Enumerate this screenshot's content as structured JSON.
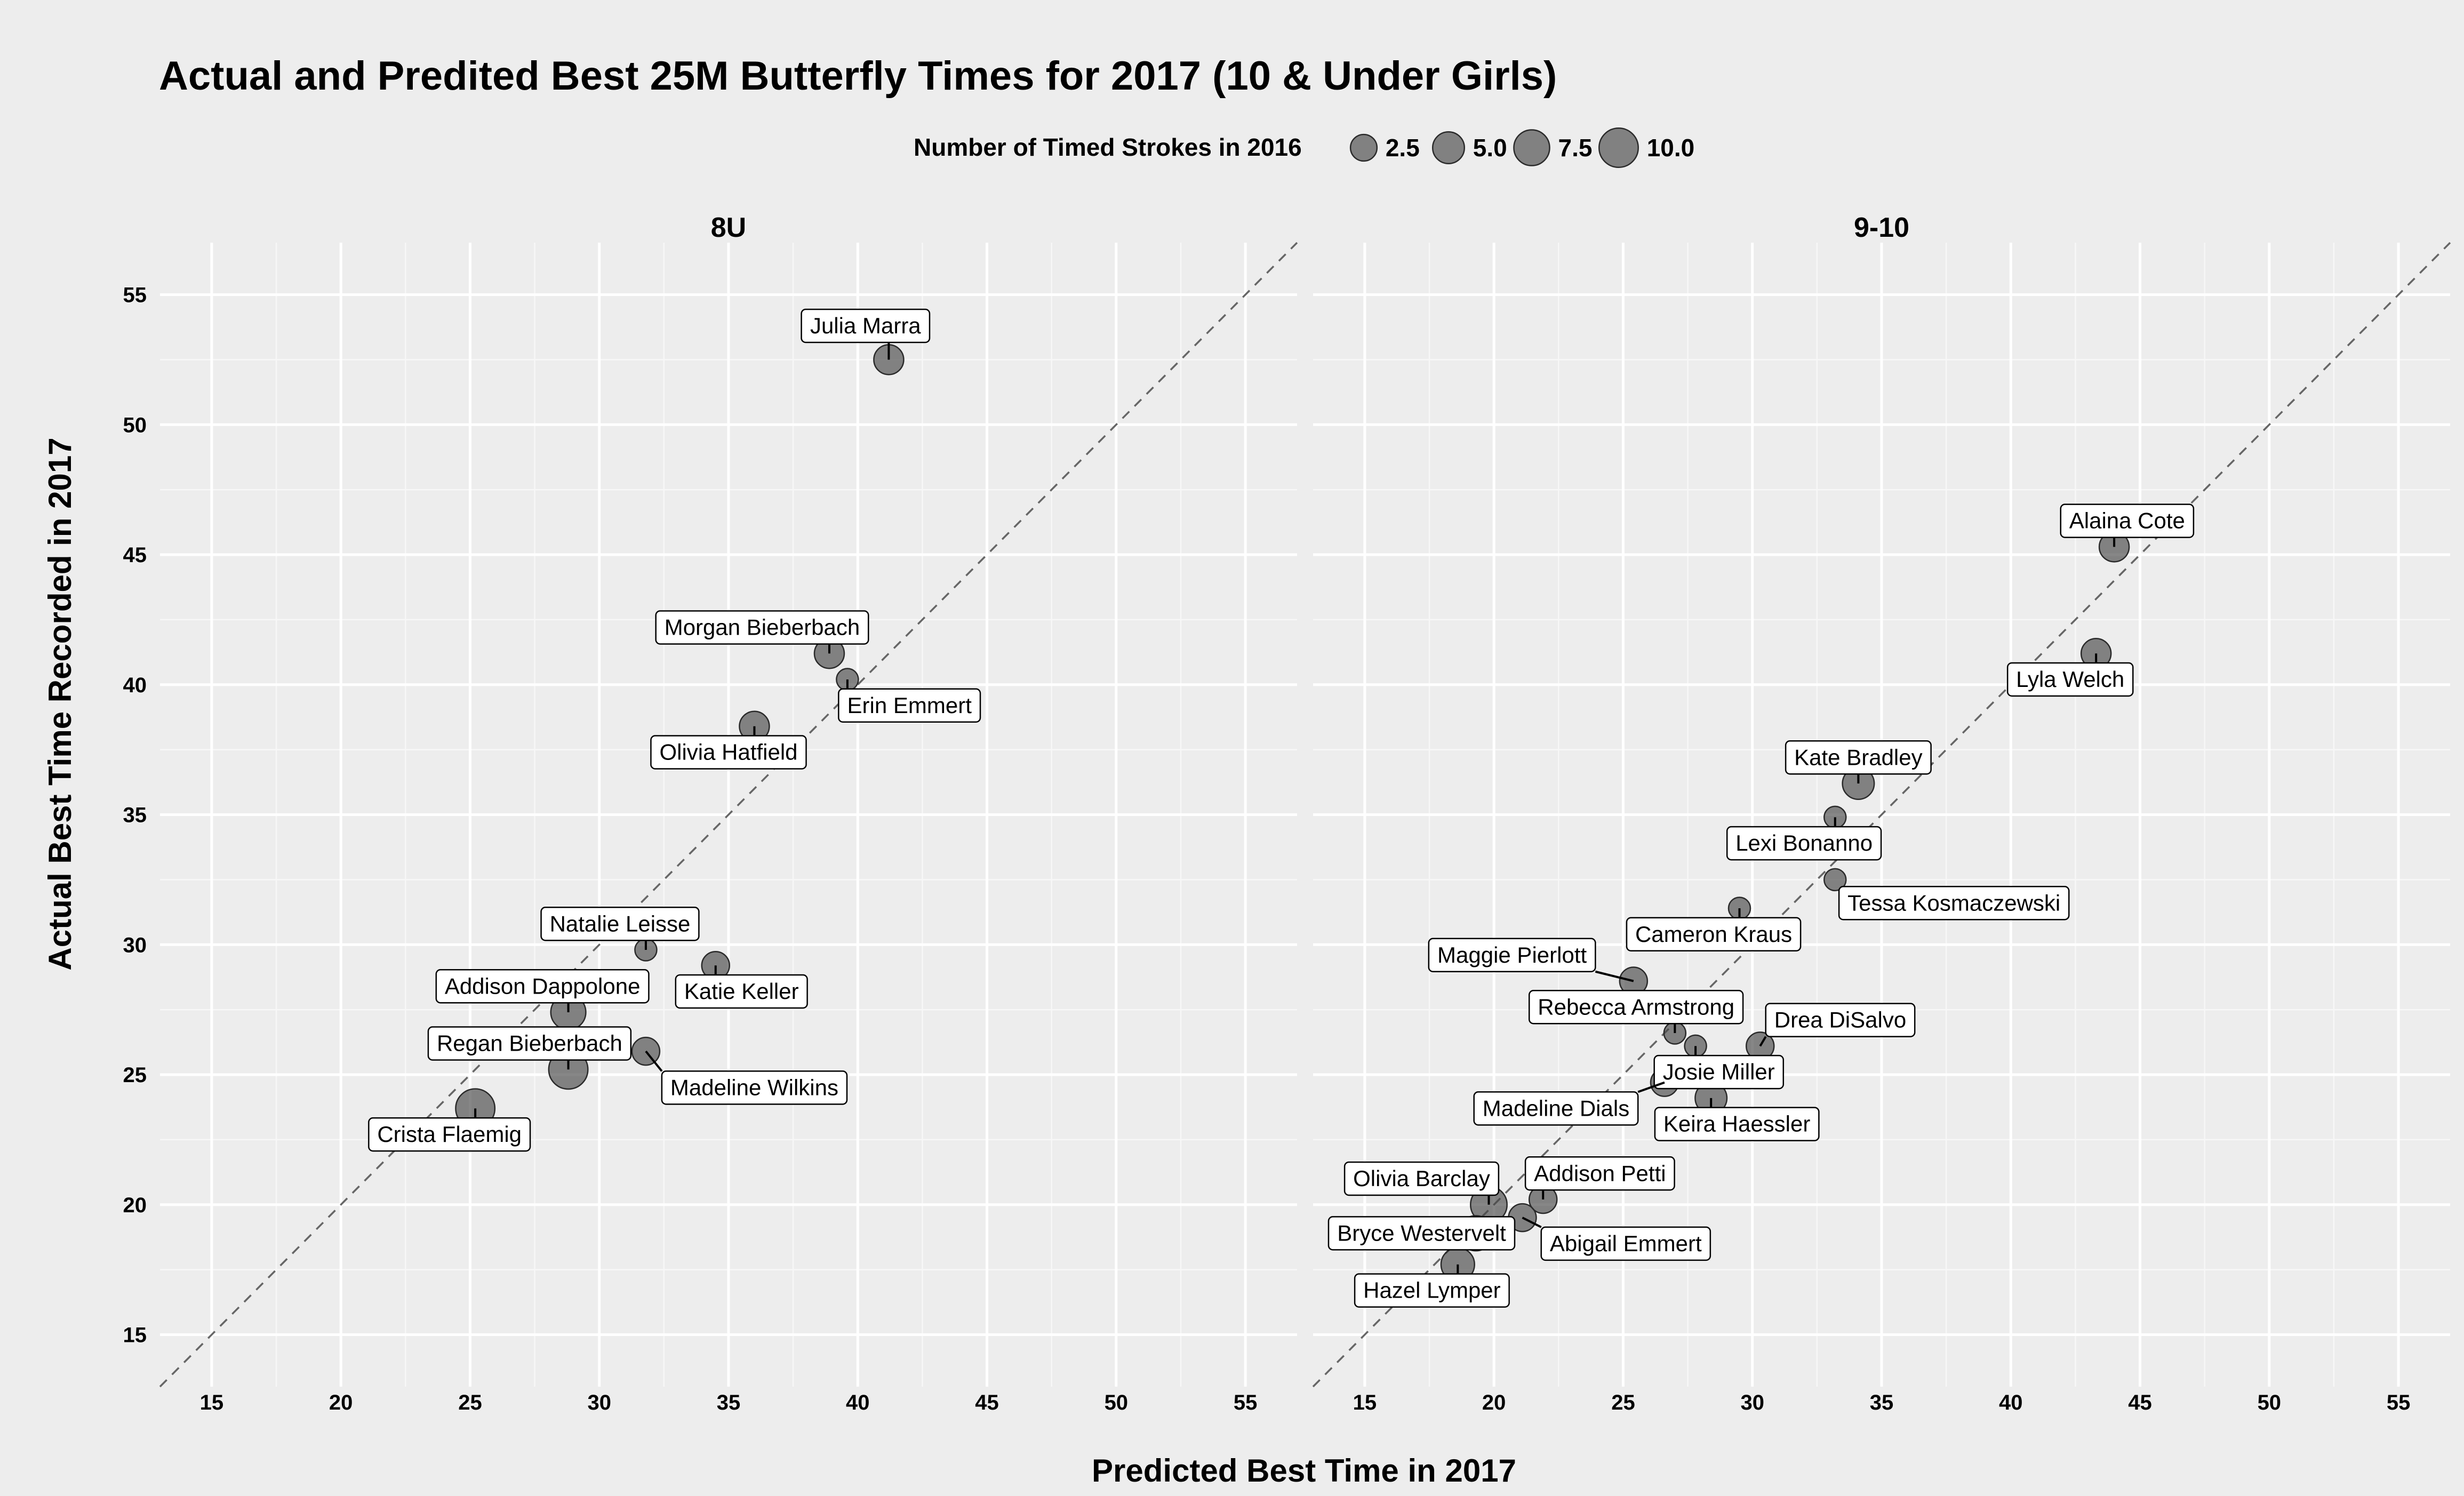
{
  "chart_data": {
    "type": "scatter",
    "title": "Actual and Predited Best 25M Butterfly Times for 2017 (10 & Under Girls)",
    "xlabel": "Predicted Best Time in 2017",
    "ylabel": "Actual Best Time Recorded in 2017",
    "xlim": [
      13,
      57
    ],
    "ylim": [
      13,
      57
    ],
    "x_ticks": [
      15,
      20,
      25,
      30,
      35,
      40,
      45,
      50,
      55
    ],
    "y_ticks": [
      15,
      20,
      25,
      30,
      35,
      40,
      45,
      50,
      55
    ],
    "reference_line": "y = x (dashed)",
    "grid": true,
    "legend": {
      "title": "Number of Timed Strokes in 2016",
      "position": "top",
      "entries": [
        {
          "label": "2.5",
          "value": 2.5
        },
        {
          "label": "5.0",
          "value": 5.0
        },
        {
          "label": "7.5",
          "value": 7.5
        },
        {
          "label": "10.0",
          "value": 10.0
        }
      ]
    },
    "facets": [
      {
        "name": "8U",
        "points": [
          {
            "name": "Julia Marra",
            "x": 41.2,
            "y": 52.5,
            "size": 4,
            "lx": 40.3,
            "ly": 53.8
          },
          {
            "name": "Morgan Bieberbach",
            "x": 38.9,
            "y": 41.2,
            "size": 4,
            "lx": 36.3,
            "ly": 42.2
          },
          {
            "name": "Erin Emmert",
            "x": 39.6,
            "y": 40.2,
            "size": 1,
            "lx": 42.0,
            "ly": 39.2
          },
          {
            "name": "Olivia Hatfield",
            "x": 36.0,
            "y": 38.4,
            "size": 4,
            "lx": 35.0,
            "ly": 37.4
          },
          {
            "name": "Natalie Leisse",
            "x": 31.8,
            "y": 29.8,
            "size": 1,
            "lx": 30.8,
            "ly": 30.8
          },
          {
            "name": "Katie Keller",
            "x": 34.5,
            "y": 29.2,
            "size": 3,
            "lx": 35.5,
            "ly": 28.2
          },
          {
            "name": "Addison Dappolone",
            "x": 28.8,
            "y": 27.4,
            "size": 7,
            "lx": 27.8,
            "ly": 28.4
          },
          {
            "name": "Regan Bieberbach",
            "x": 28.8,
            "y": 25.2,
            "size": 10,
            "lx": 27.3,
            "ly": 26.2
          },
          {
            "name": "Madeline Wilkins",
            "x": 31.8,
            "y": 25.9,
            "size": 3,
            "lx": 36.0,
            "ly": 24.5
          },
          {
            "name": "Crista Flaemig",
            "x": 25.2,
            "y": 23.7,
            "size": 10,
            "lx": 24.2,
            "ly": 22.7
          }
        ]
      },
      {
        "name": "9-10",
        "points": [
          {
            "name": "Alaina Cote",
            "x": 44.0,
            "y": 45.3,
            "size": 4,
            "lx": 44.5,
            "ly": 46.3
          },
          {
            "name": "Lyla Welch",
            "x": 43.3,
            "y": 41.2,
            "size": 4,
            "lx": 42.3,
            "ly": 40.2
          },
          {
            "name": "Kate Bradley",
            "x": 34.1,
            "y": 36.2,
            "size": 5,
            "lx": 34.1,
            "ly": 37.2
          },
          {
            "name": "Lexi Bonanno",
            "x": 33.2,
            "y": 34.9,
            "size": 1,
            "lx": 32.0,
            "ly": 33.9
          },
          {
            "name": "Tessa Kosmaczewski",
            "x": 33.2,
            "y": 32.5,
            "size": 1,
            "lx": 37.8,
            "ly": 31.6
          },
          {
            "name": "Cameron Kraus",
            "x": 29.5,
            "y": 31.4,
            "size": 1,
            "lx": 28.5,
            "ly": 30.4
          },
          {
            "name": "Maggie Pierlott",
            "x": 25.4,
            "y": 28.6,
            "size": 3,
            "lx": 20.7,
            "ly": 29.6
          },
          {
            "name": "Rebecca Armstrong",
            "x": 27.0,
            "y": 26.6,
            "size": 1,
            "lx": 25.5,
            "ly": 27.6
          },
          {
            "name": "Drea DiSalvo",
            "x": 30.3,
            "y": 26.1,
            "size": 3,
            "lx": 33.4,
            "ly": 27.1
          },
          {
            "name": "Josie Miller",
            "x": 27.8,
            "y": 26.1,
            "size": 1,
            "lx": 28.7,
            "ly": 25.1
          },
          {
            "name": "Madeline Dials",
            "x": 26.6,
            "y": 24.7,
            "size": 3,
            "lx": 22.4,
            "ly": 23.7
          },
          {
            "name": "Keira Haessler",
            "x": 28.4,
            "y": 24.1,
            "size": 5,
            "lx": 29.4,
            "ly": 23.1
          },
          {
            "name": "Olivia Barclay",
            "x": 19.8,
            "y": 20.0,
            "size": 8,
            "lx": 17.2,
            "ly": 21.0
          },
          {
            "name": "Addison Petti",
            "x": 21.9,
            "y": 20.2,
            "size": 3,
            "lx": 24.1,
            "ly": 21.2
          },
          {
            "name": "Bryce Westervelt",
            "x": 19.3,
            "y": 18.9,
            "size": 7,
            "lx": 17.2,
            "ly": 18.9
          },
          {
            "name": "Abigail Emmert",
            "x": 21.1,
            "y": 19.5,
            "size": 3,
            "lx": 25.1,
            "ly": 18.5
          },
          {
            "name": "Hazel Lymper",
            "x": 18.6,
            "y": 17.7,
            "size": 6,
            "lx": 17.6,
            "ly": 16.7
          }
        ]
      }
    ]
  }
}
